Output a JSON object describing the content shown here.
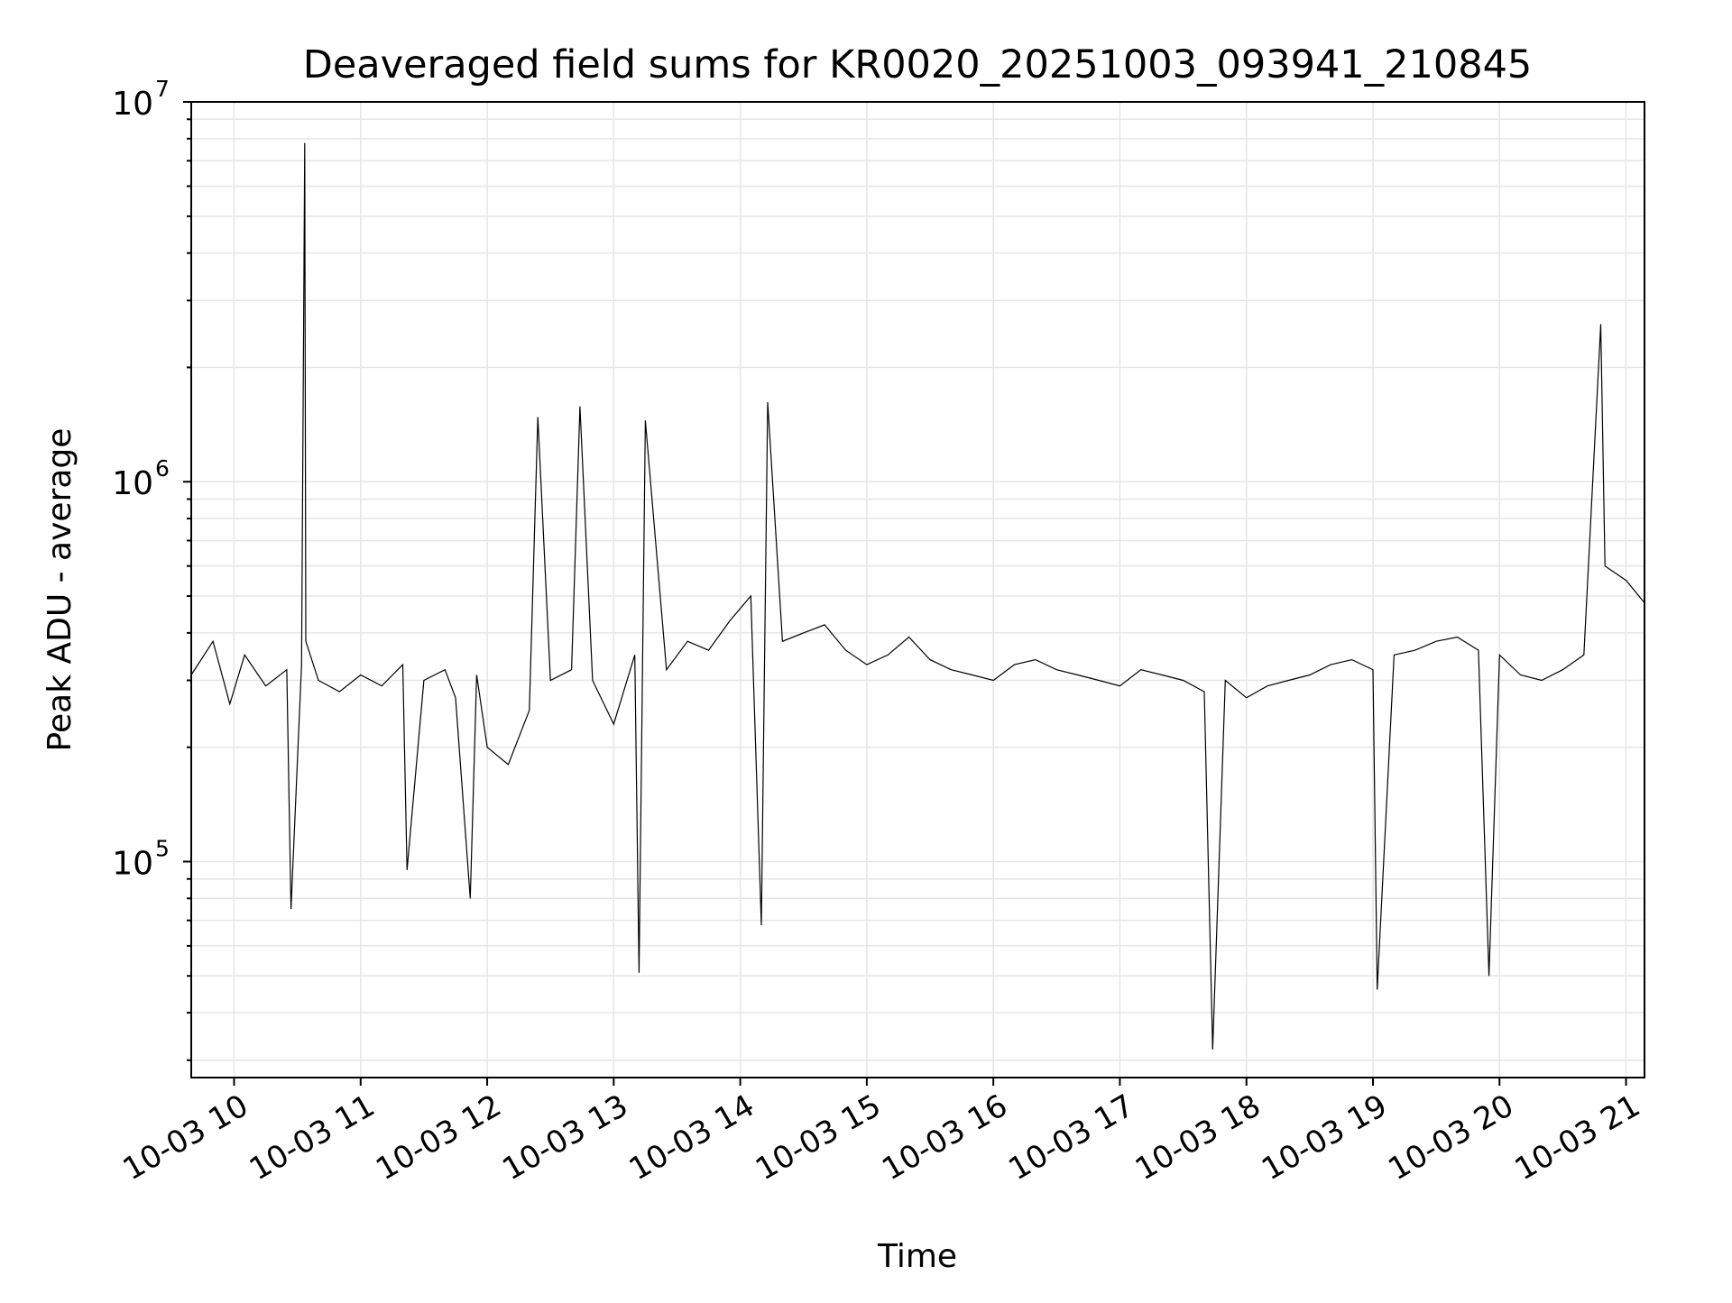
{
  "chart_data": {
    "type": "line",
    "title": "Deaveraged field sums for KR0020_20251003_093941_210845",
    "xlabel": "Time",
    "ylabel": "Peak ADU - average",
    "y_scale": "log",
    "ylim": [
      27000,
      10000000
    ],
    "xlim": [
      "2025-10-03T09:39:41",
      "2025-10-03T21:08:45"
    ],
    "grid": true,
    "x_ticks": [
      {
        "value": "2025-10-03T10:00:00",
        "label": "10-03 10"
      },
      {
        "value": "2025-10-03T11:00:00",
        "label": "10-03 11"
      },
      {
        "value": "2025-10-03T12:00:00",
        "label": "10-03 12"
      },
      {
        "value": "2025-10-03T13:00:00",
        "label": "10-03 13"
      },
      {
        "value": "2025-10-03T14:00:00",
        "label": "10-03 14"
      },
      {
        "value": "2025-10-03T15:00:00",
        "label": "10-03 15"
      },
      {
        "value": "2025-10-03T16:00:00",
        "label": "10-03 16"
      },
      {
        "value": "2025-10-03T17:00:00",
        "label": "10-03 17"
      },
      {
        "value": "2025-10-03T18:00:00",
        "label": "10-03 18"
      },
      {
        "value": "2025-10-03T19:00:00",
        "label": "10-03 19"
      },
      {
        "value": "2025-10-03T20:00:00",
        "label": "10-03 20"
      },
      {
        "value": "2025-10-03T21:00:00",
        "label": "10-03 21"
      }
    ],
    "y_ticks": [
      {
        "value": 100000,
        "base": "10",
        "exp": "5"
      },
      {
        "value": 1000000,
        "base": "10",
        "exp": "6"
      },
      {
        "value": 10000000,
        "base": "10",
        "exp": "7"
      }
    ],
    "series": [
      {
        "color": "#000000",
        "x": [
          "2025-10-03T09:39:41",
          "2025-10-03T09:50:00",
          "2025-10-03T09:58:00",
          "2025-10-03T10:05:00",
          "2025-10-03T10:15:00",
          "2025-10-03T10:25:00",
          "2025-10-03T10:27:00",
          "2025-10-03T10:32:00",
          "2025-10-03T10:33:30",
          "2025-10-03T10:34:00",
          "2025-10-03T10:40:00",
          "2025-10-03T10:50:00",
          "2025-10-03T11:00:00",
          "2025-10-03T11:10:00",
          "2025-10-03T11:20:00",
          "2025-10-03T11:22:00",
          "2025-10-03T11:30:00",
          "2025-10-03T11:40:00",
          "2025-10-03T11:45:00",
          "2025-10-03T11:52:00",
          "2025-10-03T11:55:00",
          "2025-10-03T12:00:00",
          "2025-10-03T12:10:00",
          "2025-10-03T12:20:00",
          "2025-10-03T12:24:00",
          "2025-10-03T12:30:00",
          "2025-10-03T12:40:00",
          "2025-10-03T12:44:00",
          "2025-10-03T12:50:00",
          "2025-10-03T13:00:00",
          "2025-10-03T13:10:00",
          "2025-10-03T13:12:00",
          "2025-10-03T13:15:00",
          "2025-10-03T13:25:00",
          "2025-10-03T13:35:00",
          "2025-10-03T13:45:00",
          "2025-10-03T13:55:00",
          "2025-10-03T14:05:00",
          "2025-10-03T14:10:00",
          "2025-10-03T14:13:00",
          "2025-10-03T14:20:00",
          "2025-10-03T14:30:00",
          "2025-10-03T14:40:00",
          "2025-10-03T14:50:00",
          "2025-10-03T15:00:00",
          "2025-10-03T15:10:00",
          "2025-10-03T15:20:00",
          "2025-10-03T15:30:00",
          "2025-10-03T15:40:00",
          "2025-10-03T15:50:00",
          "2025-10-03T16:00:00",
          "2025-10-03T16:10:00",
          "2025-10-03T16:20:00",
          "2025-10-03T16:30:00",
          "2025-10-03T16:40:00",
          "2025-10-03T16:50:00",
          "2025-10-03T17:00:00",
          "2025-10-03T17:10:00",
          "2025-10-03T17:20:00",
          "2025-10-03T17:30:00",
          "2025-10-03T17:40:00",
          "2025-10-03T17:44:00",
          "2025-10-03T17:50:00",
          "2025-10-03T18:00:00",
          "2025-10-03T18:10:00",
          "2025-10-03T18:20:00",
          "2025-10-03T18:30:00",
          "2025-10-03T18:40:00",
          "2025-10-03T18:50:00",
          "2025-10-03T19:00:00",
          "2025-10-03T19:02:00",
          "2025-10-03T19:10:00",
          "2025-10-03T19:20:00",
          "2025-10-03T19:30:00",
          "2025-10-03T19:40:00",
          "2025-10-03T19:50:00",
          "2025-10-03T19:55:00",
          "2025-10-03T20:00:00",
          "2025-10-03T20:10:00",
          "2025-10-03T20:20:00",
          "2025-10-03T20:30:00",
          "2025-10-03T20:40:00",
          "2025-10-03T20:48:00",
          "2025-10-03T20:50:00",
          "2025-10-03T21:00:00",
          "2025-10-03T21:08:45"
        ],
        "values": [
          310000,
          380000,
          260000,
          350000,
          290000,
          320000,
          75000,
          330000,
          7800000,
          380000,
          300000,
          280000,
          310000,
          290000,
          330000,
          95000,
          300000,
          320000,
          270000,
          80000,
          310000,
          200000,
          180000,
          250000,
          1480000,
          300000,
          320000,
          1580000,
          300000,
          230000,
          350000,
          51000,
          1450000,
          320000,
          380000,
          360000,
          430000,
          500000,
          68000,
          1620000,
          380000,
          400000,
          420000,
          360000,
          330000,
          350000,
          390000,
          340000,
          320000,
          310000,
          300000,
          330000,
          340000,
          320000,
          310000,
          300000,
          290000,
          320000,
          310000,
          300000,
          280000,
          32000,
          300000,
          270000,
          290000,
          300000,
          310000,
          330000,
          340000,
          320000,
          46000,
          350000,
          360000,
          380000,
          390000,
          360000,
          50000,
          350000,
          310000,
          300000,
          320000,
          350000,
          2600000,
          600000,
          550000,
          480000
        ]
      }
    ]
  }
}
